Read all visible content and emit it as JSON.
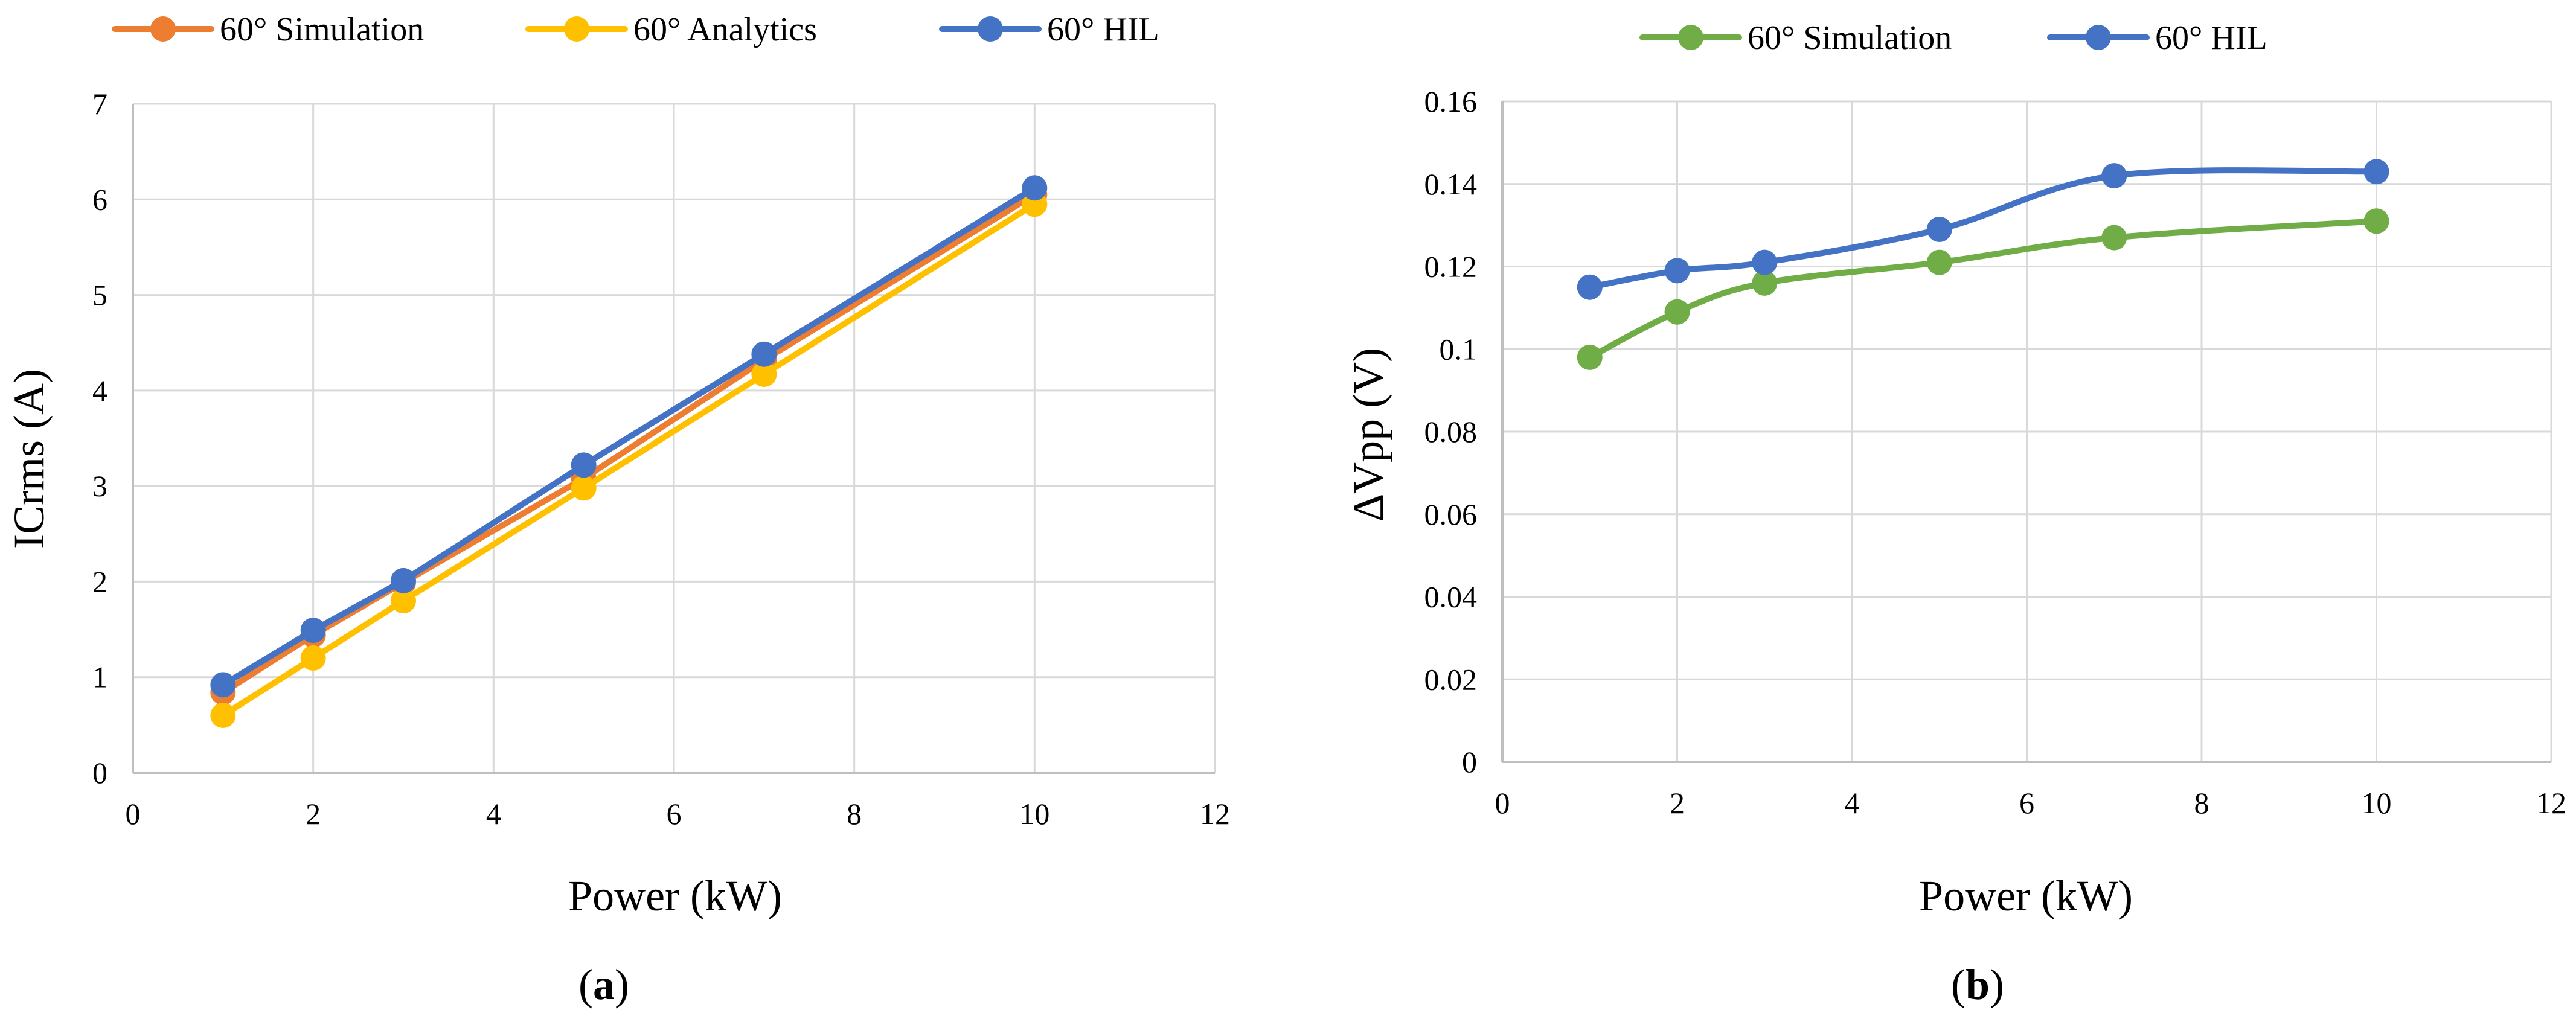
{
  "chart_data": [
    {
      "panel": "a",
      "type": "line",
      "xlabel": "Power (kW)",
      "ylabel": "ICrms (A)",
      "xlim": [
        0,
        12
      ],
      "ylim": [
        0,
        7
      ],
      "xticks": [
        0,
        2,
        4,
        6,
        8,
        10,
        12
      ],
      "yticks": [
        0,
        1,
        2,
        3,
        4,
        5,
        6,
        7
      ],
      "grid": true,
      "legend_position": "top",
      "smooth": false,
      "series": [
        {
          "name": "60° Simulation",
          "color": "#ED7D31",
          "x": [
            1,
            2,
            3,
            5,
            7,
            10
          ],
          "y": [
            0.84,
            1.44,
            1.99,
            3.08,
            4.32,
            6.05
          ]
        },
        {
          "name": "60° Analytics",
          "color": "#FFC000",
          "x": [
            1,
            2,
            3,
            5,
            7,
            10
          ],
          "y": [
            0.6,
            1.2,
            1.8,
            2.98,
            4.17,
            5.95
          ]
        },
        {
          "name": "60° HIL",
          "color": "#4472C4",
          "x": [
            1,
            2,
            3,
            5,
            7,
            10
          ],
          "y": [
            0.92,
            1.49,
            2.01,
            3.22,
            4.38,
            6.12
          ]
        }
      ]
    },
    {
      "panel": "b",
      "type": "line",
      "xlabel": "Power (kW)",
      "ylabel": "ΔVpp (V)",
      "xlim": [
        0,
        12
      ],
      "ylim": [
        0,
        0.16
      ],
      "xticks": [
        0,
        2,
        4,
        6,
        8,
        10,
        12
      ],
      "yticks": [
        0,
        0.02,
        0.04,
        0.06,
        0.08,
        0.1,
        0.12,
        0.14,
        0.16
      ],
      "grid": true,
      "legend_position": "top",
      "smooth": true,
      "series": [
        {
          "name": "60° Simulation",
          "color": "#70AD47",
          "x": [
            1,
            2,
            3,
            5,
            7,
            10
          ],
          "y": [
            0.098,
            0.109,
            0.116,
            0.121,
            0.127,
            0.131
          ]
        },
        {
          "name": "60° HIL",
          "color": "#4472C4",
          "x": [
            1,
            2,
            3,
            5,
            7,
            10
          ],
          "y": [
            0.115,
            0.119,
            0.121,
            0.129,
            0.142,
            0.143
          ]
        }
      ]
    }
  ],
  "labels": {
    "panel_a": "a",
    "panel_b": "b",
    "open_paren": "(",
    "close_paren": ")"
  }
}
